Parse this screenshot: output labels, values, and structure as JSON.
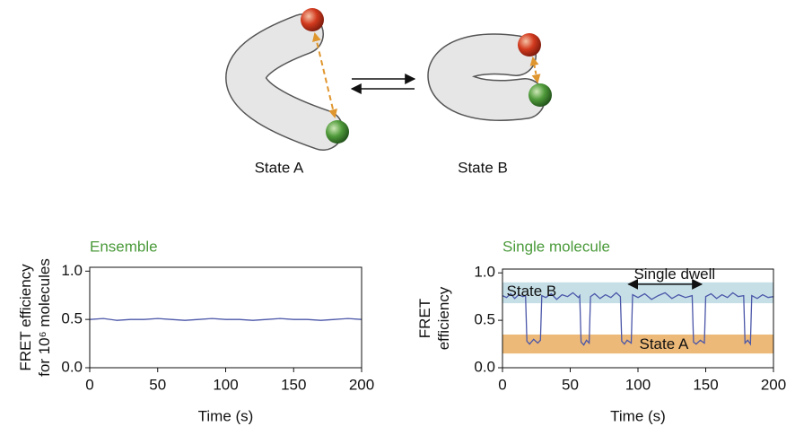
{
  "diagram": {
    "labels": [
      "State A",
      "State B"
    ]
  },
  "chart_data": [
    {
      "type": "line",
      "title": "Ensemble",
      "ylabel": [
        "FRET efficiency",
        "for 10⁶ molecules"
      ],
      "xlabel": "Time (s)",
      "xlim": [
        0,
        200
      ],
      "ylim": [
        0,
        1.04
      ],
      "xticks": [
        0,
        50,
        100,
        150,
        200
      ],
      "yticks": [
        {
          "value": 0,
          "label": "0.0"
        },
        {
          "value": 0.5,
          "label": "0.5"
        },
        {
          "value": 1,
          "label": "1.0"
        }
      ],
      "title_color": "#4a9a3a",
      "series": [
        {
          "color": "#4a56a8",
          "x": [
            0,
            10,
            20,
            30,
            40,
            50,
            60,
            70,
            80,
            90,
            100,
            110,
            120,
            130,
            140,
            150,
            160,
            170,
            180,
            190,
            200
          ],
          "values": [
            0.5,
            0.51,
            0.49,
            0.5,
            0.5,
            0.51,
            0.5,
            0.49,
            0.5,
            0.51,
            0.5,
            0.5,
            0.49,
            0.5,
            0.51,
            0.5,
            0.5,
            0.49,
            0.5,
            0.51,
            0.5
          ]
        }
      ]
    },
    {
      "type": "line",
      "title": "Single molecule",
      "ylabel": [
        "FRET",
        "efficiency"
      ],
      "xlabel": "Time (s)",
      "xlim": [
        0,
        200
      ],
      "ylim": [
        0,
        1.04
      ],
      "xticks": [
        0,
        50,
        100,
        150,
        200
      ],
      "yticks": [
        {
          "value": 0,
          "label": "0.0"
        },
        {
          "value": 0.5,
          "label": "0.5"
        },
        {
          "value": 1,
          "label": "1.0"
        }
      ],
      "title_color": "#4a9a3a",
      "bands": [
        {
          "label": "State B",
          "range": [
            0.68,
            0.9
          ],
          "color": "#c6dfe7",
          "label_x": 3,
          "label_y": 0.8
        },
        {
          "label": "State A",
          "range": [
            0.15,
            0.35
          ],
          "color": "#edb978",
          "label_x": 101,
          "label_y": 0.24
        }
      ],
      "annotation": {
        "label": "Single dwell",
        "label_x": 97,
        "label_y": 0.98,
        "arrow_x": [
          93,
          147
        ],
        "arrow_y": 0.88
      },
      "series": [
        {
          "color": "#4a56a8",
          "x": [
            0,
            3,
            6,
            9,
            12,
            15,
            17,
            18,
            20,
            23,
            26,
            28,
            29,
            32,
            36,
            40,
            44,
            48,
            52,
            56,
            57,
            58,
            60,
            62,
            64,
            65,
            68,
            72,
            76,
            80,
            84,
            87,
            88,
            90,
            92,
            95,
            96,
            100,
            105,
            110,
            115,
            120,
            125,
            130,
            135,
            140,
            141,
            143,
            146,
            149,
            150,
            154,
            158,
            162,
            166,
            170,
            174,
            178,
            179,
            181,
            183,
            184,
            188,
            192,
            196,
            200
          ],
          "values": [
            0.76,
            0.74,
            0.78,
            0.73,
            0.77,
            0.75,
            0.76,
            0.28,
            0.25,
            0.3,
            0.26,
            0.29,
            0.76,
            0.74,
            0.78,
            0.72,
            0.77,
            0.75,
            0.79,
            0.74,
            0.76,
            0.27,
            0.24,
            0.29,
            0.26,
            0.75,
            0.78,
            0.73,
            0.77,
            0.74,
            0.79,
            0.75,
            0.28,
            0.25,
            0.29,
            0.26,
            0.77,
            0.74,
            0.78,
            0.72,
            0.76,
            0.79,
            0.73,
            0.77,
            0.74,
            0.76,
            0.27,
            0.25,
            0.29,
            0.26,
            0.75,
            0.78,
            0.73,
            0.77,
            0.74,
            0.79,
            0.75,
            0.76,
            0.26,
            0.29,
            0.25,
            0.76,
            0.73,
            0.77,
            0.74,
            0.75
          ]
        }
      ]
    }
  ]
}
